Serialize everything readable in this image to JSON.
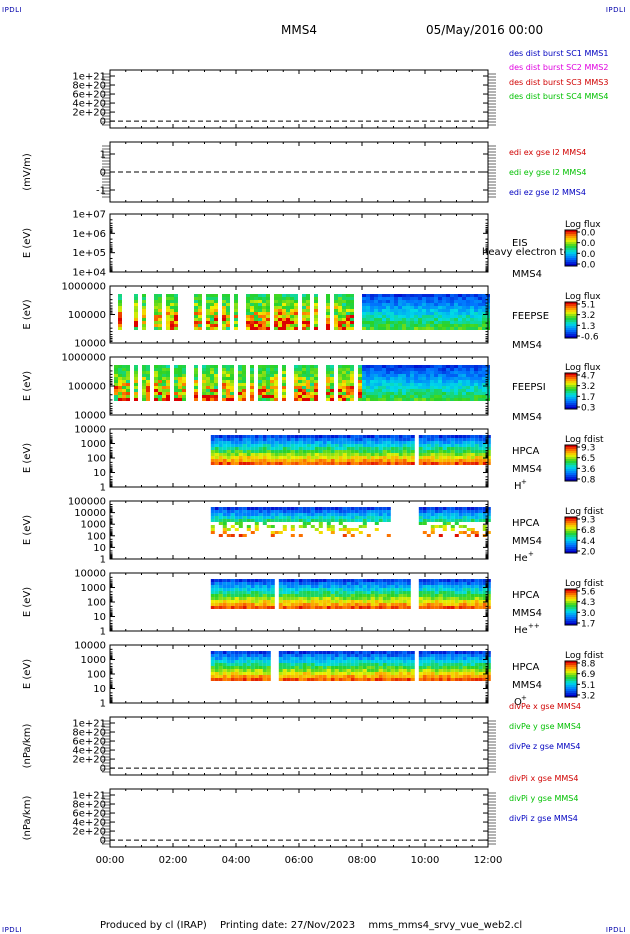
{
  "corner_labels": {
    "top_left": "IPDLI",
    "top_right": "IPDLI",
    "bottom_left": "IPDLI",
    "bottom_right": "IPDLI"
  },
  "header": {
    "spacecraft": "MMS4",
    "datetime": "05/May/2016 00:00"
  },
  "footer": {
    "produced_by": "Produced by cl (IRAP)",
    "printing_date": "Printing date: 27/Nov/2023",
    "filename": "mms_mms4_srvy_vue_web2.cl"
  },
  "colors": {
    "red": "#d00000",
    "green": "#00c000",
    "blue": "#0000c0",
    "magenta": "#e000e0",
    "axis": "#000000"
  },
  "chart_data": [
    {
      "type": "line",
      "panel": "dist-burst",
      "ylabel": "",
      "yticks": [
        "1e+21",
        "8e+20",
        "6e+20",
        "4e+20",
        "2e+20",
        "0"
      ],
      "legend": [
        {
          "name": "des dist burst SC1 MMS1",
          "color": "#0000c0"
        },
        {
          "name": "des dist burst SC2 MMS2",
          "color": "#e000e0"
        },
        {
          "name": "des dist burst SC3 MMS3",
          "color": "#d00000"
        },
        {
          "name": "des dist burst SC4 MMS4",
          "color": "#00c000"
        }
      ],
      "series": []
    },
    {
      "type": "line",
      "panel": "edi-e",
      "ylabel": "(mV/m)",
      "yticks": [
        "1",
        "0",
        "-1"
      ],
      "legend": [
        {
          "name": "edi ex gse l2 MMS4",
          "color": "#d00000"
        },
        {
          "name": "edi ey gse l2 MMS4",
          "color": "#00c000"
        },
        {
          "name": "edi ez gse l2 MMS4",
          "color": "#0000c0"
        }
      ],
      "series": []
    },
    {
      "type": "heatmap",
      "panel": "eis",
      "ylabel": "E (eV)",
      "yticks": [
        "1e+07",
        "1e+06",
        "1e+05",
        "1e+04"
      ],
      "instrument": "EIS",
      "spacecraft": "MMS4",
      "note": "heavy electron to",
      "colorbar_title": "Log flux",
      "colorbar_ticks": [
        "0.0",
        "0.0",
        "0.0",
        "0.0"
      ],
      "start_hour": null,
      "gaps": []
    },
    {
      "type": "heatmap",
      "panel": "feepse",
      "ylabel": "E (eV)",
      "yticks": [
        "1000000",
        "100000",
        "10000"
      ],
      "instrument": "FEEPSE",
      "spacecraft": "MMS4",
      "colorbar_title": "Log flux",
      "colorbar_ticks": [
        "5.1",
        "3.2",
        "1.3",
        "-0.6"
      ],
      "start_hour": 0,
      "gaps": []
    },
    {
      "type": "heatmap",
      "panel": "feepsi",
      "ylabel": "E (eV)",
      "yticks": [
        "1000000",
        "100000",
        "10000"
      ],
      "instrument": "FEEPSI",
      "spacecraft": "MMS4",
      "colorbar_title": "Log flux",
      "colorbar_ticks": [
        "4.7",
        "3.2",
        "1.7",
        "0.3"
      ],
      "start_hour": 0,
      "gaps": []
    },
    {
      "type": "heatmap",
      "panel": "hpca-h",
      "ylabel": "E (eV)",
      "yticks": [
        "10000",
        "1000",
        "100",
        "10",
        "1"
      ],
      "instrument": "HPCA",
      "spacecraft": "MMS4",
      "species": "H",
      "charge": "+",
      "colorbar_title": "Log fdist",
      "colorbar_ticks": [
        "9.3",
        "6.5",
        "3.6",
        "0.8"
      ],
      "start_hour": 3.2,
      "gaps": [
        [
          9.55,
          9.7
        ]
      ]
    },
    {
      "type": "heatmap",
      "panel": "hpca-he",
      "ylabel": "E (eV)",
      "yticks": [
        "100000",
        "10000",
        "1000",
        "100",
        "10",
        "1"
      ],
      "instrument": "HPCA",
      "spacecraft": "MMS4",
      "species": "He",
      "charge": "+",
      "colorbar_title": "Log fdist",
      "colorbar_ticks": [
        "9.3",
        "6.8",
        "4.4",
        "2.0"
      ],
      "start_hour": 3.2,
      "gaps": [
        [
          8.9,
          9.7
        ]
      ]
    },
    {
      "type": "heatmap",
      "panel": "hpca-hepp",
      "ylabel": "E (eV)",
      "yticks": [
        "10000",
        "1000",
        "100",
        "10",
        "1"
      ],
      "instrument": "HPCA",
      "spacecraft": "MMS4",
      "species": "He",
      "charge": "++",
      "colorbar_title": "Log fdist",
      "colorbar_ticks": [
        "5.6",
        "4.3",
        "3.0",
        "1.7"
      ],
      "start_hour": 3.2,
      "gaps": [
        [
          5.15,
          5.3
        ],
        [
          9.45,
          9.7
        ]
      ]
    },
    {
      "type": "heatmap",
      "panel": "hpca-o",
      "ylabel": "E (eV)",
      "yticks": [
        "10000",
        "1000",
        "100",
        "10",
        "1"
      ],
      "instrument": "HPCA",
      "spacecraft": "MMS4",
      "species": "O",
      "charge": "+",
      "colorbar_title": "Log fdist",
      "colorbar_ticks": [
        "8.8",
        "6.9",
        "5.1",
        "3.2"
      ],
      "start_hour": 3.2,
      "gaps": [
        [
          5.0,
          5.3
        ],
        [
          9.6,
          9.75
        ]
      ]
    },
    {
      "type": "line",
      "panel": "divpe",
      "ylabel": "(nPa/km)",
      "yticks": [
        "1e+21",
        "8e+20",
        "6e+20",
        "4e+20",
        "2e+20",
        "0"
      ],
      "legend": [
        {
          "name": "divPe x gse MMS4",
          "color": "#d00000"
        },
        {
          "name": "divPe y gse MMS4",
          "color": "#00c000"
        },
        {
          "name": "divPe z gse MMS4",
          "color": "#0000c0"
        }
      ],
      "series": []
    },
    {
      "type": "line",
      "panel": "divpi",
      "ylabel": "(nPa/km)",
      "yticks": [
        "1e+21",
        "8e+20",
        "6e+20",
        "4e+20",
        "2e+20",
        "0"
      ],
      "legend": [
        {
          "name": "divPi x gse MMS4",
          "color": "#d00000"
        },
        {
          "name": "divPi y gse MMS4",
          "color": "#00c000"
        },
        {
          "name": "divPi z gse MMS4",
          "color": "#0000c0"
        }
      ],
      "series": []
    }
  ],
  "x_axis": {
    "xlim": [
      0,
      12
    ],
    "ticks": [
      "00:00",
      "02:00",
      "04:00",
      "06:00",
      "08:00",
      "10:00",
      "12:00"
    ]
  }
}
